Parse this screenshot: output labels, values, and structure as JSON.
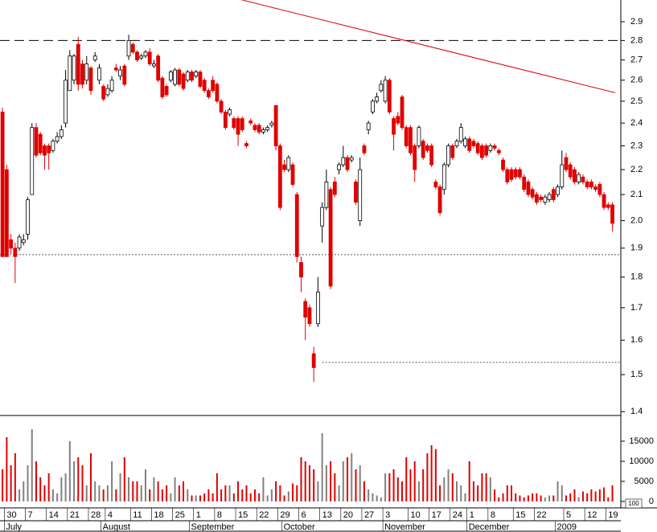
{
  "chart_data": {
    "type": "candlestick",
    "ylim": [
      1.39,
      3.02
    ],
    "log_scale": true,
    "yticks": [
      1.4,
      1.5,
      1.6,
      1.7,
      1.8,
      1.9,
      {
        "value": 2,
        "label": "2.0"
      },
      2.1,
      2.2,
      2.3,
      2.4,
      2.5,
      2.6,
      2.7,
      2.8,
      2.9
    ],
    "up_color": "#000000",
    "down_color": "#e00000",
    "xlim": [
      -0.6,
      147
    ],
    "xticks": [
      {
        "value": 1,
        "label": "30"
      },
      {
        "value": 6,
        "label": "7"
      },
      {
        "value": 11,
        "label": "14"
      },
      {
        "value": 16,
        "label": "21"
      },
      {
        "value": 21,
        "label": "28"
      },
      {
        "value": 25,
        "label": "4"
      },
      {
        "value": 31,
        "label": "11"
      },
      {
        "value": 36,
        "label": "18"
      },
      {
        "value": 41,
        "label": "25"
      },
      {
        "value": 46,
        "label": "1"
      },
      {
        "value": 51,
        "label": "8"
      },
      {
        "value": 56,
        "label": "15"
      },
      {
        "value": 61,
        "label": "22"
      },
      {
        "value": 66,
        "label": "29"
      },
      {
        "value": 71,
        "label": "6"
      },
      {
        "value": 76,
        "label": "13"
      },
      {
        "value": 81,
        "label": "20"
      },
      {
        "value": 86,
        "label": "27"
      },
      {
        "value": 91,
        "label": "3"
      },
      {
        "value": 97,
        "label": "10"
      },
      {
        "value": 102,
        "label": "17"
      },
      {
        "value": 107,
        "label": "24"
      },
      {
        "value": 111,
        "label": "1"
      },
      {
        "value": 116,
        "label": "8"
      },
      {
        "value": 122,
        "label": "15"
      },
      {
        "value": 127,
        "label": "22"
      },
      {
        "value": 134,
        "label": "5"
      },
      {
        "value": 139,
        "label": "12"
      },
      {
        "value": 144,
        "label": "19"
      }
    ],
    "month_ticks": [
      {
        "value": 1,
        "label": "July"
      },
      {
        "value": 24,
        "label": "August"
      },
      {
        "value": 45,
        "label": "September"
      },
      {
        "value": 67,
        "label": "October"
      },
      {
        "value": 91,
        "label": "November"
      },
      {
        "value": 111,
        "label": "December"
      },
      {
        "value": 132,
        "label": "2009"
      }
    ],
    "ohlc": [
      [
        2.45,
        2.47,
        1.87,
        1.87
      ],
      [
        2.2,
        2.22,
        1.87,
        1.87
      ],
      [
        1.93,
        1.95,
        1.88,
        1.9
      ],
      [
        1.9,
        1.92,
        1.78,
        1.87
      ],
      [
        1.9,
        1.95,
        1.89,
        1.94
      ],
      [
        1.92,
        1.95,
        1.91,
        1.93
      ],
      [
        1.95,
        2.09,
        1.93,
        2.08
      ],
      [
        2.1,
        2.4,
        2.1,
        2.38
      ],
      [
        2.38,
        2.4,
        2.25,
        2.26
      ],
      [
        2.35,
        2.36,
        2.26,
        2.27
      ],
      [
        2.3,
        2.31,
        2.2,
        2.26
      ],
      [
        2.3,
        2.31,
        2.2,
        2.27
      ],
      [
        2.28,
        2.33,
        2.27,
        2.32
      ],
      [
        2.32,
        2.36,
        2.31,
        2.34
      ],
      [
        2.34,
        2.39,
        2.33,
        2.37
      ],
      [
        2.4,
        2.65,
        2.38,
        2.6
      ],
      [
        2.55,
        2.75,
        2.55,
        2.72
      ],
      [
        2.6,
        2.73,
        2.58,
        2.72
      ],
      [
        2.78,
        2.82,
        2.55,
        2.58
      ],
      [
        2.68,
        2.7,
        2.56,
        2.58
      ],
      [
        2.6,
        2.72,
        2.58,
        2.68
      ],
      [
        2.66,
        2.67,
        2.53,
        2.55
      ],
      [
        2.7,
        2.74,
        2.69,
        2.72
      ],
      [
        2.6,
        2.68,
        2.58,
        2.66
      ],
      [
        2.57,
        2.58,
        2.5,
        2.51
      ],
      [
        2.53,
        2.58,
        2.52,
        2.56
      ],
      [
        2.55,
        2.62,
        2.54,
        2.6
      ],
      [
        2.66,
        2.68,
        2.64,
        2.65
      ],
      [
        2.62,
        2.67,
        2.6,
        2.65
      ],
      [
        2.67,
        2.68,
        2.57,
        2.58
      ],
      [
        2.72,
        2.83,
        2.7,
        2.8
      ],
      [
        2.78,
        2.79,
        2.73,
        2.74
      ],
      [
        2.74,
        2.75,
        2.69,
        2.7
      ],
      [
        2.71,
        2.73,
        2.7,
        2.72
      ],
      [
        2.72,
        2.75,
        2.71,
        2.74
      ],
      [
        2.74,
        2.76,
        2.67,
        2.68
      ],
      [
        2.67,
        2.7,
        2.66,
        2.68
      ],
      [
        2.72,
        2.73,
        2.59,
        2.6
      ],
      [
        2.61,
        2.62,
        2.51,
        2.52
      ],
      [
        2.57,
        2.58,
        2.52,
        2.53
      ],
      [
        2.6,
        2.65,
        2.59,
        2.64
      ],
      [
        2.58,
        2.66,
        2.57,
        2.65
      ],
      [
        2.65,
        2.66,
        2.57,
        2.58
      ],
      [
        2.63,
        2.64,
        2.55,
        2.56
      ],
      [
        2.6,
        2.65,
        2.59,
        2.64
      ],
      [
        2.64,
        2.65,
        2.59,
        2.6
      ],
      [
        2.62,
        2.65,
        2.61,
        2.64
      ],
      [
        2.64,
        2.65,
        2.56,
        2.57
      ],
      [
        2.6,
        2.61,
        2.54,
        2.55
      ],
      [
        2.55,
        2.56,
        2.51,
        2.52
      ],
      [
        2.6,
        2.62,
        2.54,
        2.55
      ],
      [
        2.58,
        2.59,
        2.49,
        2.5
      ],
      [
        2.5,
        2.51,
        2.44,
        2.45
      ],
      [
        2.45,
        2.46,
        2.37,
        2.38
      ],
      [
        2.44,
        2.47,
        2.43,
        2.46
      ],
      [
        2.42,
        2.43,
        2.37,
        2.38
      ],
      [
        2.42,
        2.43,
        2.3,
        2.35
      ],
      [
        2.42,
        2.43,
        2.36,
        2.37
      ],
      [
        2.31,
        2.32,
        2.29,
        2.3
      ],
      [
        2.41,
        2.42,
        2.39,
        2.4
      ],
      [
        2.39,
        2.4,
        2.36,
        2.37
      ],
      [
        2.39,
        2.4,
        2.35,
        2.36
      ],
      [
        2.36,
        2.38,
        2.35,
        2.37
      ],
      [
        2.37,
        2.39,
        2.36,
        2.38
      ],
      [
        2.39,
        2.41,
        2.38,
        2.4
      ],
      [
        2.48,
        2.48,
        2.28,
        2.3
      ],
      [
        2.3,
        2.31,
        2.04,
        2.05
      ],
      [
        2.22,
        2.24,
        2.19,
        2.2
      ],
      [
        2.2,
        2.26,
        2.19,
        2.25
      ],
      [
        2.22,
        2.23,
        2.13,
        2.14
      ],
      [
        2.1,
        2.11,
        1.85,
        1.87
      ],
      [
        1.85,
        1.87,
        1.75,
        1.8
      ],
      [
        1.72,
        1.73,
        1.6,
        1.67
      ],
      [
        1.7,
        1.71,
        1.64,
        1.65
      ],
      [
        1.56,
        1.58,
        1.48,
        1.52
      ],
      [
        1.65,
        1.8,
        1.64,
        1.75
      ],
      [
        1.98,
        2.07,
        1.92,
        2.05
      ],
      [
        2.05,
        2.2,
        2.04,
        2.15
      ],
      [
        2.12,
        2.13,
        1.76,
        1.77
      ],
      [
        2.15,
        2.17,
        2.09,
        2.1
      ],
      [
        2.2,
        2.23,
        2.18,
        2.22
      ],
      [
        2.22,
        2.3,
        2.21,
        2.25
      ],
      [
        2.25,
        2.26,
        2.19,
        2.2
      ],
      [
        2.24,
        2.26,
        2.23,
        2.25
      ],
      [
        2.15,
        2.16,
        2.06,
        2.07
      ],
      [
        2.0,
        2.25,
        1.98,
        2.2
      ],
      [
        2.3,
        2.31,
        2.26,
        2.27
      ],
      [
        2.37,
        2.41,
        2.35,
        2.4
      ],
      [
        2.45,
        2.51,
        2.44,
        2.5
      ],
      [
        2.5,
        2.54,
        2.49,
        2.52
      ],
      [
        2.55,
        2.6,
        2.54,
        2.58
      ],
      [
        2.5,
        2.62,
        2.49,
        2.6
      ],
      [
        2.6,
        2.61,
        2.44,
        2.45
      ],
      [
        2.42,
        2.43,
        2.28,
        2.35
      ],
      [
        2.43,
        2.45,
        2.39,
        2.4
      ],
      [
        2.52,
        2.53,
        2.37,
        2.38
      ],
      [
        2.38,
        2.39,
        2.29,
        2.3
      ],
      [
        2.38,
        2.39,
        2.26,
        2.27
      ],
      [
        2.3,
        2.31,
        2.15,
        2.2
      ],
      [
        2.3,
        2.39,
        2.29,
        2.38
      ],
      [
        2.32,
        2.33,
        2.24,
        2.25
      ],
      [
        2.3,
        2.31,
        2.27,
        2.28
      ],
      [
        2.3,
        2.31,
        2.21,
        2.22
      ],
      [
        2.15,
        2.16,
        2.12,
        2.13
      ],
      [
        2.13,
        2.14,
        2.02,
        2.03
      ],
      [
        2.12,
        2.23,
        2.1,
        2.22
      ],
      [
        2.22,
        2.31,
        2.21,
        2.3
      ],
      [
        2.3,
        2.31,
        2.24,
        2.25
      ],
      [
        2.3,
        2.33,
        2.29,
        2.32
      ],
      [
        2.32,
        2.4,
        2.31,
        2.38
      ],
      [
        2.3,
        2.34,
        2.29,
        2.33
      ],
      [
        2.33,
        2.34,
        2.27,
        2.28
      ],
      [
        2.32,
        2.33,
        2.29,
        2.3
      ],
      [
        2.31,
        2.32,
        2.26,
        2.27
      ],
      [
        2.3,
        2.31,
        2.24,
        2.25
      ],
      [
        2.3,
        2.31,
        2.25,
        2.26
      ],
      [
        2.28,
        2.31,
        2.27,
        2.3
      ],
      [
        2.3,
        2.31,
        2.28,
        2.29
      ],
      [
        2.28,
        2.29,
        2.26,
        2.27
      ],
      [
        2.24,
        2.25,
        2.19,
        2.2
      ],
      [
        2.2,
        2.21,
        2.14,
        2.15
      ],
      [
        2.2,
        2.21,
        2.15,
        2.16
      ],
      [
        2.2,
        2.21,
        2.16,
        2.17
      ],
      [
        2.2,
        2.21,
        2.16,
        2.17
      ],
      [
        2.17,
        2.18,
        2.11,
        2.12
      ],
      [
        2.15,
        2.16,
        2.09,
        2.1
      ],
      [
        2.12,
        2.13,
        2.08,
        2.09
      ],
      [
        2.1,
        2.11,
        2.06,
        2.07
      ],
      [
        2.09,
        2.1,
        2.07,
        2.08
      ],
      [
        2.07,
        2.1,
        2.06,
        2.09
      ],
      [
        2.08,
        2.11,
        2.07,
        2.1
      ],
      [
        2.12,
        2.13,
        2.07,
        2.08
      ],
      [
        2.1,
        2.14,
        2.09,
        2.13
      ],
      [
        2.13,
        2.28,
        2.12,
        2.22
      ],
      [
        2.25,
        2.27,
        2.19,
        2.2
      ],
      [
        2.22,
        2.23,
        2.16,
        2.17
      ],
      [
        2.2,
        2.21,
        2.14,
        2.15
      ],
      [
        2.15,
        2.19,
        2.14,
        2.18
      ],
      [
        2.17,
        2.18,
        2.14,
        2.15
      ],
      [
        2.15,
        2.16,
        2.12,
        2.13
      ],
      [
        2.15,
        2.16,
        2.12,
        2.13
      ],
      [
        2.13,
        2.14,
        2.11,
        2.12
      ],
      [
        2.14,
        2.15,
        2.09,
        2.1
      ],
      [
        2.1,
        2.11,
        2.04,
        2.05
      ],
      [
        2.06,
        2.07,
        2.04,
        2.05
      ],
      [
        2.06,
        2.07,
        1.96,
        1.99
      ]
    ],
    "volume": [
      8000,
      16000,
      9000,
      12000,
      3000,
      5000,
      9000,
      18000,
      10000,
      6000,
      4000,
      7000,
      3000,
      2000,
      6000,
      7000,
      15000,
      10000,
      11000,
      9000,
      4000,
      12000,
      5000,
      4000,
      3000,
      4000,
      10000,
      3000,
      7000,
      11000,
      6000,
      5000,
      5000,
      4000,
      8000,
      3000,
      6000,
      5000,
      3000,
      4000,
      2000,
      6000,
      4000,
      5000,
      3000,
      1500,
      1500,
      1500,
      2000,
      3000,
      2000,
      7000,
      3000,
      4000,
      4000,
      2000,
      5000,
      3000,
      4000,
      2000,
      3000,
      2000,
      6000,
      1500,
      3000,
      5000,
      4000,
      1500,
      2500,
      4500,
      4000,
      11000,
      10000,
      9000,
      8000,
      5000,
      17000,
      9000,
      10000,
      7000,
      4000,
      10000,
      11000,
      12000,
      8000,
      9000,
      5000,
      3000,
      2000,
      1500,
      1000,
      7000,
      7000,
      8000,
      6000,
      5000,
      11000,
      8000,
      10000,
      5000,
      8000,
      12000,
      14000,
      13000,
      4000,
      6000,
      8000,
      7000,
      5000,
      4000,
      2000,
      10000,
      5000,
      4000,
      7000,
      7000,
      6000,
      3000,
      1000,
      2000,
      4000,
      4000,
      2000,
      1500,
      1000,
      1500,
      2000,
      2000,
      1500,
      1000,
      1500,
      1500,
      5000,
      4000,
      1500,
      2000,
      3000,
      1000,
      2500,
      2000,
      3000,
      2500,
      3000,
      3500,
      1000,
      4000
    ],
    "volume_up_color": "#808080",
    "volume_down_color": "#e00000",
    "volume_ylim": [
      -1600,
      21400
    ],
    "volume_yticks": [
      0,
      5000,
      10000,
      15000
    ],
    "volume_unit": "100",
    "hlines": [
      {
        "value": 2.8,
        "style": "dashed",
        "color": "#000000",
        "x": [
          -0.6,
          147
        ]
      },
      {
        "value": 1.877,
        "style": "dotted",
        "color": "#555555",
        "x": [
          -0.6,
          147
        ]
      },
      {
        "value": 1.535,
        "style": "dotted",
        "color": "#555555",
        "x": [
          76,
          147
        ]
      }
    ],
    "trendline": {
      "color": "#e00000",
      "x": [
        57,
        145.6
      ],
      "y": [
        3.02,
        2.54
      ]
    }
  }
}
